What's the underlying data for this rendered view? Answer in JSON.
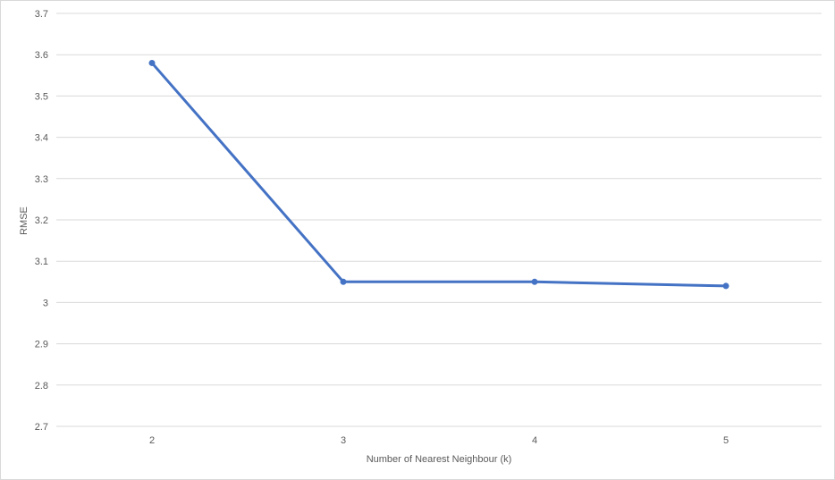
{
  "chart_data": {
    "type": "line",
    "title": "",
    "xlabel": "Number of Nearest Neighbour (k)",
    "ylabel": "RMSE",
    "categories": [
      "2",
      "3",
      "4",
      "5"
    ],
    "series": [
      {
        "values": [
          3.58,
          3.05,
          3.05,
          3.04
        ],
        "color": "#4472c4"
      }
    ],
    "ylim": [
      2.7,
      3.7
    ],
    "yticks": [
      "2.7",
      "2.8",
      "2.9",
      "3",
      "3.1",
      "3.2",
      "3.3",
      "3.4",
      "3.5",
      "3.6",
      "3.7"
    ],
    "grid": true,
    "legend": "none",
    "gridline_color": "#d9d9d9"
  }
}
